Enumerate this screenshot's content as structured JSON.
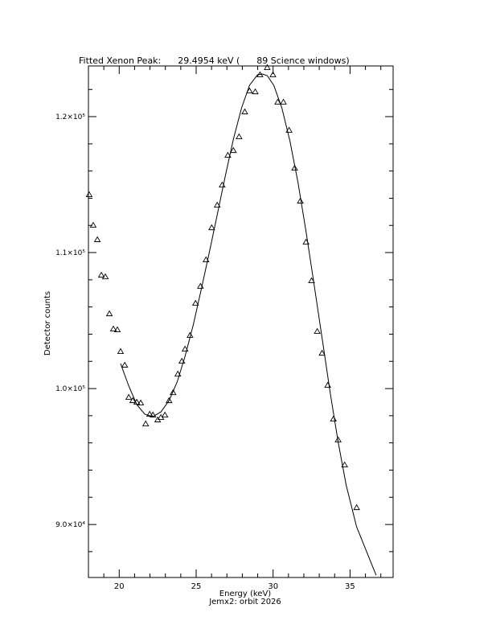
{
  "chart_data": {
    "type": "scatter",
    "title": "Fitted Xenon Peak:      29.4954 keV (      89 Science windows)",
    "x_label": "Energy (keV)",
    "subtitle": "Jemx2: orbit 2026",
    "y_label": "Detector counts",
    "xlim": [
      18,
      37.8
    ],
    "ylim": [
      86100,
      123730
    ],
    "xticks": [
      20,
      25,
      30,
      35
    ],
    "xminorticks": [
      19,
      21,
      22,
      23,
      24,
      26,
      27,
      28,
      29,
      31,
      32,
      33,
      34,
      36,
      37
    ],
    "yticks": [
      {
        "value": 90000,
        "label": "9.0×10⁴"
      },
      {
        "value": 100000,
        "label": "1.0×10⁵"
      },
      {
        "value": 110000,
        "label": "1.1×10⁵"
      },
      {
        "value": 120000,
        "label": "1.2×10⁵"
      }
    ],
    "yminorticks": [
      88000,
      92000,
      94000,
      96000,
      98000,
      102000,
      104000,
      106000,
      108000,
      112000,
      114000,
      116000,
      118000,
      122000
    ],
    "color": "#000000",
    "series": [
      {
        "style": "markers",
        "x": [
          18.05,
          18.31,
          18.58,
          18.84,
          19.1,
          19.36,
          19.62,
          19.88,
          20.09,
          20.36,
          20.62,
          20.88,
          21.14,
          21.4,
          21.72,
          21.98,
          22.19,
          22.5,
          22.71,
          22.97,
          23.24,
          23.5,
          23.81,
          24.07,
          24.28,
          24.6,
          24.96,
          25.28,
          25.64,
          26.01,
          26.37,
          26.69,
          27.06,
          27.42,
          27.79,
          28.16,
          28.47,
          28.84,
          29.15,
          29.62,
          29.99,
          30.3,
          30.67,
          31.04,
          31.4,
          31.77,
          32.14,
          32.5,
          32.87,
          33.18,
          33.55,
          33.92,
          34.23,
          34.65,
          35.43
        ],
        "values": [
          114260,
          112010,
          110950,
          108340,
          108220,
          105500,
          104380,
          104320,
          102720,
          101720,
          99350,
          99110,
          99000,
          98940,
          97400,
          98110,
          98050,
          97690,
          97870,
          98050,
          99110,
          99700,
          101060,
          102010,
          102900,
          103910,
          106270,
          107520,
          109470,
          111830,
          113490,
          114970,
          117160,
          117510,
          118520,
          120350,
          121890,
          121830,
          123080,
          123610,
          123080,
          121070,
          121070,
          119000,
          116210,
          113790,
          110770,
          107930,
          104200,
          102600,
          100240,
          97750,
          96220,
          94380,
          91240
        ]
      },
      {
        "style": "line",
        "x": [
          20.09,
          20.62,
          21.14,
          21.66,
          22.19,
          22.71,
          23.24,
          23.76,
          24.28,
          24.81,
          25.33,
          25.85,
          26.38,
          26.9,
          27.42,
          27.95,
          28.47,
          28.99,
          29.31,
          29.62,
          30.04,
          30.57,
          31.09,
          31.62,
          32.14,
          32.66,
          33.18,
          33.71,
          34.23,
          34.75,
          35.43,
          36.69
        ],
        "values": [
          101830,
          100180,
          98820,
          98110,
          97930,
          98280,
          99110,
          100470,
          102370,
          104680,
          107280,
          110000,
          112840,
          115680,
          118340,
          120650,
          122310,
          123080,
          123140,
          123020,
          122310,
          120650,
          118220,
          115150,
          111540,
          107690,
          103730,
          99700,
          96040,
          92900,
          89820,
          86270
        ]
      }
    ]
  }
}
